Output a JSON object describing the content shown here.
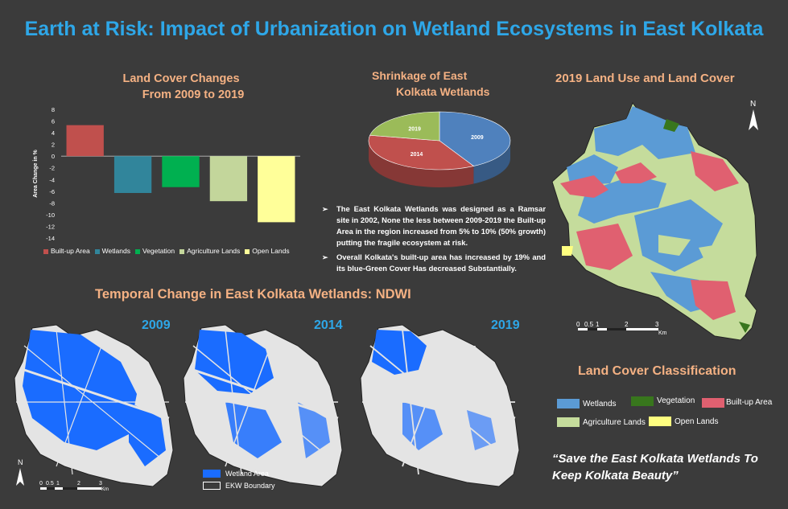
{
  "title": "Earth at Risk: Impact of Urbanization on Wetland Ecosystems in East Kolkata",
  "land_cover_changes": {
    "title_line1": "Land Cover Changes",
    "title_line2": "From 2009 to 2019"
  },
  "shrinkage": {
    "title_line1": "Shrinkage of East",
    "title_line2": "Kolkata Wetlands"
  },
  "land_use_title": "2019 Land Use and Land Cover",
  "temporal_title": "Temporal Change in East Kolkata Wetlands: NDWI",
  "classification_title": "Land Cover Classification",
  "bullets": [
    "The East Kolkata Wetlands was designed as a Ramsar site in 2002, None the less between 2009-2019 the Built-up Area in the region increased from 5% to 10% (50% growth) putting the fragile ecosystem at risk.",
    "Overall Kolkata's built-up area has increased by 19% and its blue-Green Cover Has decreased Substantially."
  ],
  "quote": "“Save the East Kolkata Wetlands To Keep Kolkata Beauty”",
  "ndwi_years": [
    "2009",
    "2014",
    "2019"
  ],
  "ndwi_legend": [
    "Wetland Area",
    "EKW Boundary"
  ],
  "north_label": "N",
  "scale_labels": [
    "0",
    "0.5",
    "1",
    "2",
    "3",
    "Km"
  ],
  "classification_legend": [
    {
      "label": "Wetlands",
      "color": "#5b9bd5"
    },
    {
      "label": "Vegetation",
      "color": "#38761d"
    },
    {
      "label": "Built-up Area",
      "color": "#e06070"
    },
    {
      "label": "Agriculture Lands",
      "color": "#c5dc9c"
    },
    {
      "label": "Open Lands",
      "color": "#ffff80"
    }
  ],
  "colors": {
    "title_blue": "#2ea7e8",
    "heading_orange": "#f4b183",
    "wetland_blue": "#1a6cff"
  },
  "chart_data": [
    {
      "type": "bar",
      "ylabel": "Area Change in %",
      "ylim": [
        -14,
        8
      ],
      "yticks": [
        8,
        6,
        4,
        2,
        0,
        -2,
        -4,
        -6,
        -8,
        -10,
        -12,
        -14
      ],
      "categories": [
        "Built-up Area",
        "Wetlands",
        "Vegetation",
        "Agriculture Lands",
        "Open Lands"
      ],
      "values": [
        5.3,
        -6.3,
        -5.3,
        -7.7,
        -11.3
      ],
      "colors": [
        "#c0504d",
        "#31859b",
        "#00b050",
        "#c3d69b",
        "#ffff99"
      ],
      "legend_position": "bottom"
    },
    {
      "type": "pie",
      "categories": [
        "2009",
        "2014",
        "2019"
      ],
      "values": [
        42,
        36,
        22
      ],
      "colors": [
        "#4f81bd",
        "#c0504d",
        "#9bbb59"
      ]
    }
  ]
}
